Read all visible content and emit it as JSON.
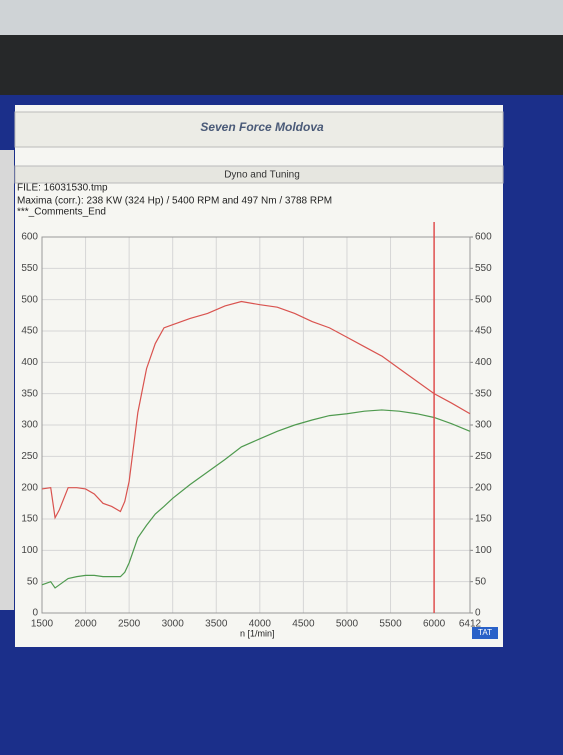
{
  "header": {
    "title": "Seven Force Moldova",
    "subtitle": "Dyno and Tuning",
    "info": [
      "FILE: 16031530.tmp",
      "Maxima (corr.): 238 KW (324 Hp) /  5400 RPM   and   497 Nm /  3788 RPM",
      "***_Comments_End"
    ],
    "button": "TAT"
  },
  "chart_data": {
    "type": "line",
    "xlabel": "n  [1/min]",
    "x": [
      1500,
      1600,
      1650,
      1700,
      1800,
      1900,
      2000,
      2100,
      2200,
      2300,
      2400,
      2450,
      2500,
      2600,
      2700,
      2800,
      2900,
      3000,
      3200,
      3400,
      3600,
      3788,
      4000,
      4200,
      4400,
      4600,
      4800,
      5000,
      5200,
      5400,
      5600,
      5800,
      6000,
      6200,
      6412
    ],
    "series": [
      {
        "color": "#d9534f",
        "values": [
          198,
          200,
          152,
          165,
          200,
          200,
          198,
          190,
          175,
          170,
          162,
          178,
          210,
          320,
          390,
          430,
          455,
          460,
          470,
          478,
          490,
          497,
          492,
          488,
          478,
          465,
          455,
          440,
          425,
          410,
          390,
          370,
          350,
          335,
          318
        ]
      },
      {
        "color": "#4f9a4f",
        "values": [
          45,
          50,
          40,
          45,
          55,
          58,
          60,
          60,
          58,
          58,
          58,
          65,
          80,
          120,
          140,
          158,
          170,
          183,
          205,
          225,
          245,
          265,
          278,
          290,
          300,
          308,
          315,
          318,
          322,
          324,
          322,
          318,
          312,
          302,
          290
        ]
      }
    ],
    "xlim": [
      1500,
      6412
    ],
    "xticks": [
      1500,
      2000,
      2500,
      3000,
      3500,
      4000,
      4500,
      5000,
      5500,
      6000,
      6412
    ],
    "ylim": [
      0,
      600
    ],
    "yticks": [
      0,
      50,
      100,
      150,
      200,
      250,
      300,
      350,
      400,
      450,
      500,
      550,
      600
    ],
    "y2lim": [
      0,
      600
    ],
    "y2ticks": [
      0,
      50,
      100,
      150,
      200,
      250,
      300,
      350,
      400,
      450,
      500,
      550,
      600
    ],
    "grid": true,
    "cursor_x": 6000,
    "cursor_color": "#e05050"
  }
}
